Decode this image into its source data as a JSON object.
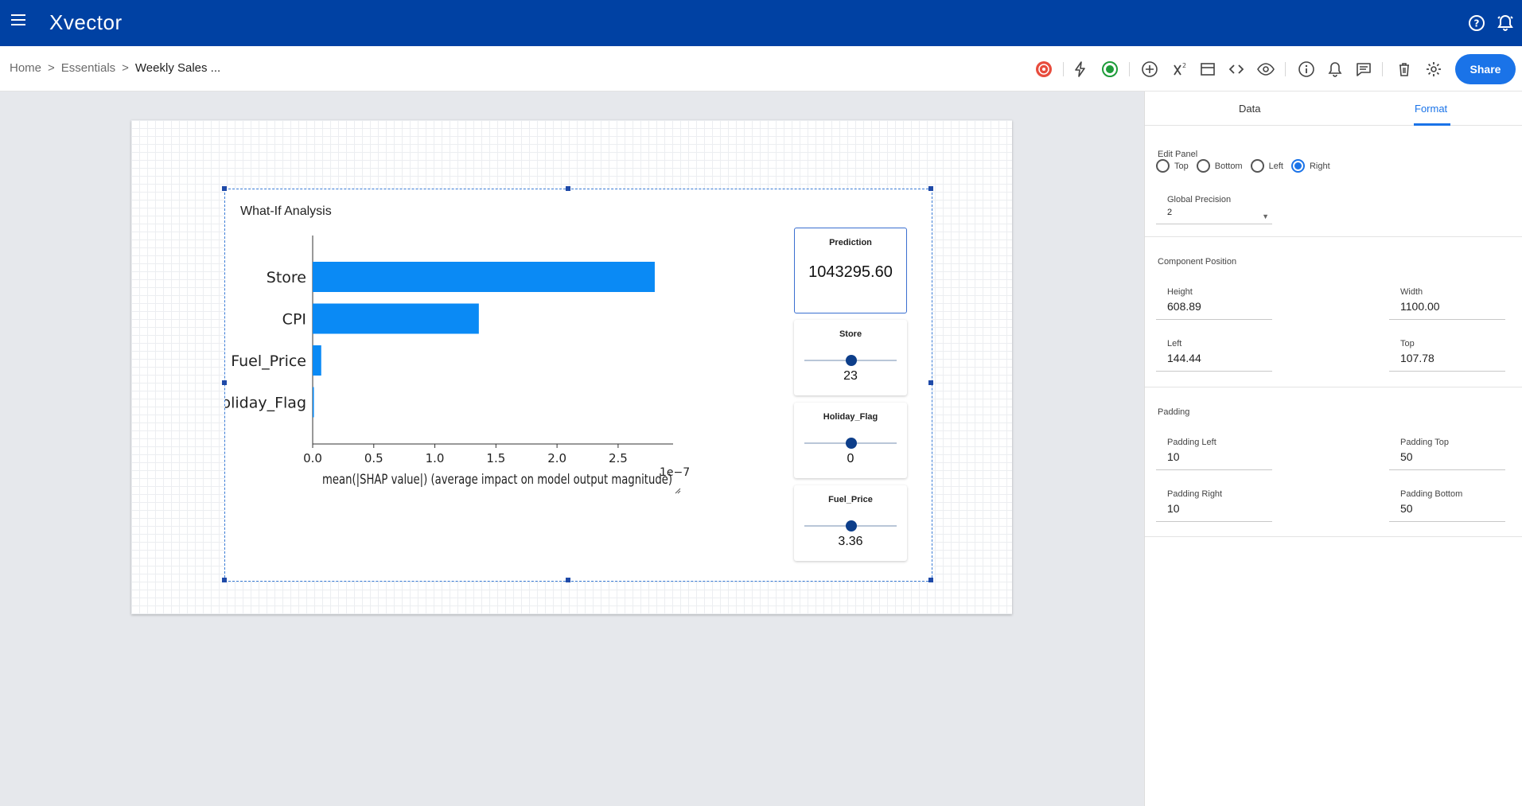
{
  "app": {
    "logo": "Xvector"
  },
  "breadcrumb": {
    "home": "Home",
    "sep": ">",
    "section": "Essentials",
    "current": "Weekly Sales ..."
  },
  "toolbar": {
    "share_label": "Share"
  },
  "component": {
    "title": "What-If Analysis",
    "prediction": {
      "label": "Prediction",
      "value": "1043295.60"
    },
    "sliders": [
      {
        "label": "Store",
        "value": "23"
      },
      {
        "label": "Holiday_Flag",
        "value": "0"
      },
      {
        "label": "Fuel_Price",
        "value": "3.36"
      }
    ]
  },
  "chart_data": {
    "type": "bar",
    "orientation": "horizontal",
    "categories": [
      "Store",
      "CPI",
      "Fuel_Price",
      "Holiday_Flag"
    ],
    "values": [
      2.8,
      1.36,
      0.07,
      0.01
    ],
    "xlabel": "mean(|SHAP value|) (average impact on model output magnitude)",
    "x_ticks": [
      "0.0",
      "0.5",
      "1.0",
      "1.5",
      "2.0",
      "2.5"
    ],
    "xlim": [
      0,
      2.95
    ],
    "x_scale_note": "1e−7",
    "bar_color": "#0a8af5",
    "grid": false
  },
  "panel": {
    "tabs": [
      "Data",
      "Format"
    ],
    "active_tab": "Format",
    "edit_panel": {
      "label": "Edit Panel",
      "options": [
        "Top",
        "Bottom",
        "Left",
        "Right"
      ],
      "selected": "Right"
    },
    "global_precision": {
      "label": "Global Precision",
      "value": "2"
    },
    "component_position": {
      "label": "Component Position",
      "height_label": "Height",
      "height": "608.89",
      "width_label": "Width",
      "width": "1100.00",
      "left_label": "Left",
      "left": "144.44",
      "top_label": "Top",
      "top": "107.78"
    },
    "padding": {
      "label": "Padding",
      "left_label": "Padding Left",
      "left": "10",
      "top_label": "Padding Top",
      "top": "50",
      "right_label": "Padding Right",
      "right": "10",
      "bottom_label": "Padding Bottom",
      "bottom": "50"
    }
  },
  "colors": {
    "topbar": "#0041a3",
    "accent": "#1a73e8",
    "bar": "#0a8af5",
    "slider_thumb": "#0d3e8a"
  }
}
